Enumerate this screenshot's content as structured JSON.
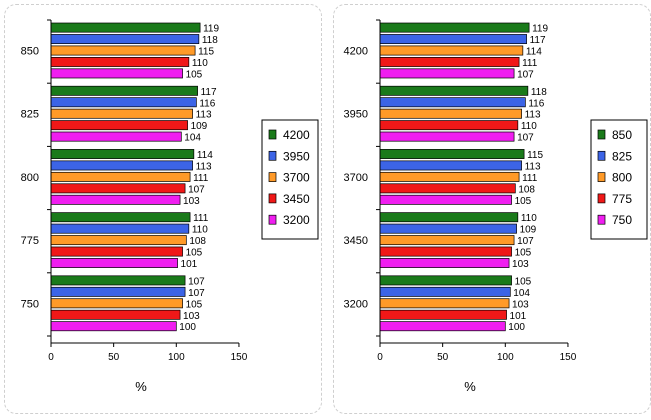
{
  "chart_data": [
    {
      "type": "bar",
      "orientation": "horizontal",
      "categories": [
        "850",
        "825",
        "800",
        "775",
        "750"
      ],
      "series": [
        {
          "name": "4200",
          "color": "#1a7a1a",
          "values": [
            119,
            117,
            114,
            111,
            107
          ]
        },
        {
          "name": "3950",
          "color": "#3c64e6",
          "values": [
            118,
            116,
            113,
            110,
            107
          ]
        },
        {
          "name": "3700",
          "color": "#ff9a28",
          "values": [
            115,
            113,
            111,
            108,
            105
          ]
        },
        {
          "name": "3450",
          "color": "#f01818",
          "values": [
            110,
            109,
            107,
            105,
            103
          ]
        },
        {
          "name": "3200",
          "color": "#f01ef0",
          "values": [
            105,
            104,
            103,
            101,
            100
          ]
        }
      ],
      "xlabel": "%",
      "xlim": [
        0,
        150
      ],
      "xticks": [
        "0",
        "50",
        "100",
        "150"
      ],
      "legend_position": "right",
      "grid": false
    },
    {
      "type": "bar",
      "orientation": "horizontal",
      "categories": [
        "4200",
        "3950",
        "3700",
        "3450",
        "3200"
      ],
      "series": [
        {
          "name": "850",
          "color": "#1a7a1a",
          "values": [
            119,
            118,
            115,
            110,
            105
          ]
        },
        {
          "name": "825",
          "color": "#3c64e6",
          "values": [
            117,
            116,
            113,
            109,
            104
          ]
        },
        {
          "name": "800",
          "color": "#ff9a28",
          "values": [
            114,
            113,
            111,
            107,
            103
          ]
        },
        {
          "name": "775",
          "color": "#f01818",
          "values": [
            111,
            110,
            108,
            105,
            101
          ]
        },
        {
          "name": "750",
          "color": "#f01ef0",
          "values": [
            107,
            107,
            105,
            103,
            100
          ]
        }
      ],
      "xlabel": "%",
      "xlim": [
        0,
        150
      ],
      "xticks": [
        "0",
        "50",
        "100",
        "150"
      ],
      "legend_position": "right",
      "grid": false
    }
  ]
}
